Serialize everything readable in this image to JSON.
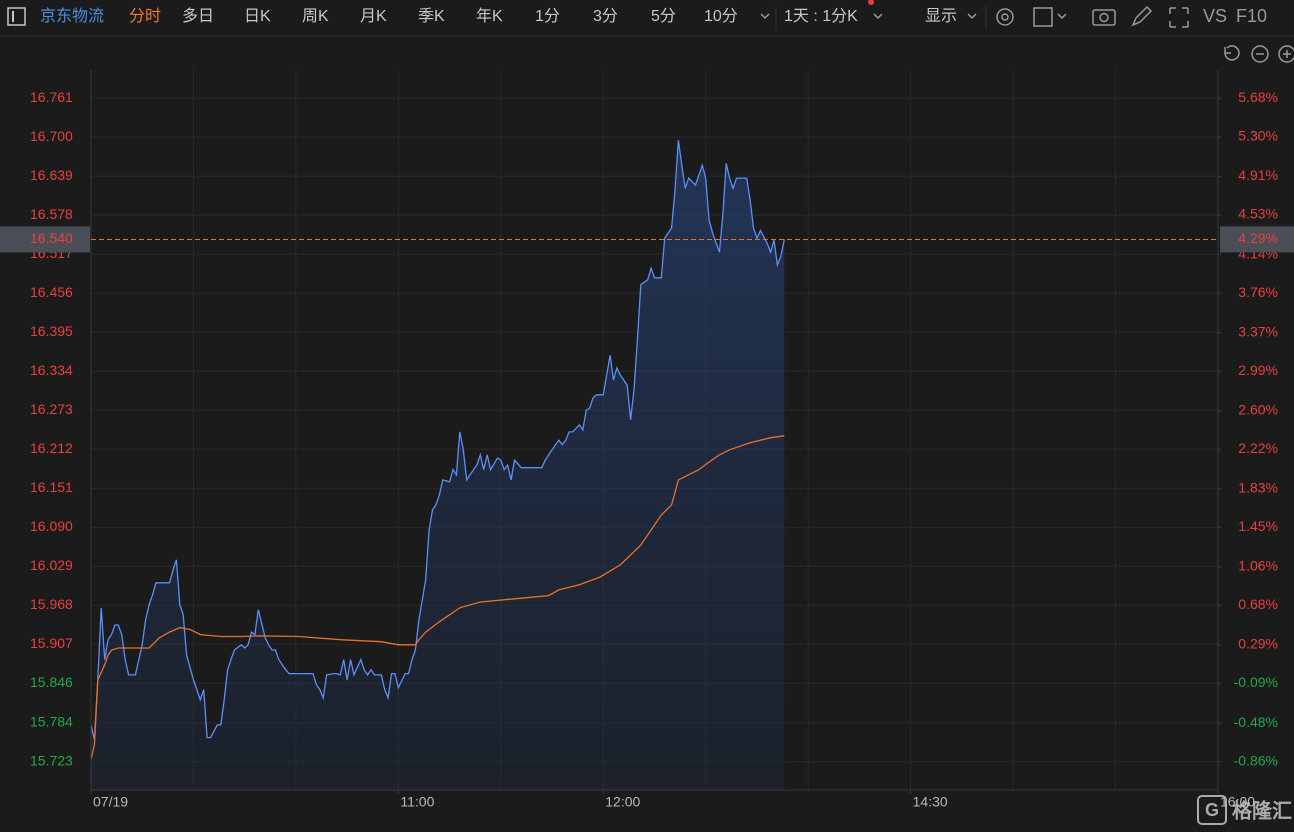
{
  "toolbar": {
    "stock": "京东物流",
    "active": "分时",
    "tabs": [
      "多日",
      "日K",
      "周K",
      "月K",
      "季K",
      "年K",
      "1分",
      "3分",
      "5分",
      "10分"
    ],
    "period": "1天 : 1分K",
    "display": "显示",
    "vs": "VS",
    "f10": "F10"
  },
  "watermark": {
    "logo": "G",
    "text": "格隆汇"
  },
  "chart_data": {
    "type": "line",
    "xlim": [
      0,
      330
    ],
    "xticks": [
      {
        "value": 0,
        "label": "07/19"
      },
      {
        "value": 90,
        "label": "11:00"
      },
      {
        "value": 150,
        "label": "12:00"
      },
      {
        "value": 240,
        "label": "14:30"
      },
      {
        "value": 330,
        "label": "16:00"
      }
    ],
    "xgrid": [
      30,
      60,
      90,
      120,
      150,
      180,
      210,
      240,
      270,
      300
    ],
    "ylim": [
      15.679,
      16.805
    ],
    "yticks": [
      15.723,
      15.784,
      15.846,
      15.907,
      15.968,
      16.029,
      {
        "value": 16.09,
        "label": "16.090"
      },
      16.151,
      16.212,
      16.273,
      16.334,
      16.395,
      16.456,
      16.517,
      16.578,
      16.639,
      {
        "value": 16.7,
        "label": "16.700"
      },
      16.761
    ],
    "y2lim": [
      -1.14,
      5.96
    ],
    "y2ticks": [
      {
        "value": -0.86,
        "label": "-0.86%"
      },
      {
        "value": -0.48,
        "label": "-0.48%"
      },
      {
        "value": -0.09,
        "label": "-0.09%"
      },
      {
        "value": 0.29,
        "label": "0.29%"
      },
      {
        "value": 0.68,
        "label": "0.68%"
      },
      {
        "value": 1.06,
        "label": "1.06%"
      },
      {
        "value": 1.45,
        "label": "1.45%"
      },
      {
        "value": 1.83,
        "label": "1.83%"
      },
      {
        "value": 2.22,
        "label": "2.22%"
      },
      {
        "value": 2.6,
        "label": "2.60%"
      },
      {
        "value": 2.99,
        "label": "2.99%"
      },
      {
        "value": 3.37,
        "label": "3.37%"
      },
      {
        "value": 3.76,
        "label": "3.76%"
      },
      {
        "value": 4.14,
        "label": "4.14%"
      },
      {
        "value": 4.53,
        "label": "4.53%"
      },
      {
        "value": 4.91,
        "label": "4.91%"
      },
      {
        "value": 5.3,
        "label": "5.30%"
      },
      {
        "value": 5.68,
        "label": "5.68%"
      }
    ],
    "up_color": "#e8403c",
    "down_color": "#22a84a",
    "grid": true,
    "last_price": {
      "value": 16.54,
      "label": "16.540"
    },
    "last_pct": {
      "value": 4.29,
      "label": "4.29%"
    },
    "series": [
      {
        "color": "#5b8ff9",
        "area": true,
        "x": [
          0,
          1,
          2,
          3,
          4,
          5,
          6,
          7,
          8,
          9,
          10,
          11,
          13,
          14,
          15,
          16,
          17,
          18,
          19,
          20,
          22,
          23,
          24,
          25,
          26,
          27,
          28,
          30,
          31,
          32,
          33,
          34,
          35,
          37,
          38,
          39,
          40,
          41,
          42,
          44,
          45,
          46,
          47,
          48,
          49,
          51,
          52,
          53,
          54,
          55,
          57,
          58,
          59,
          61,
          64,
          65,
          66,
          67,
          68,
          69,
          71,
          72,
          73,
          74,
          75,
          76,
          77,
          79,
          80,
          81,
          82,
          83,
          85,
          86,
          87,
          88,
          89,
          90,
          92,
          93,
          94,
          95,
          96,
          98,
          99,
          100,
          101,
          102,
          103,
          105,
          106,
          107,
          108,
          109,
          110,
          112,
          113,
          114,
          115,
          116,
          117,
          119,
          120,
          121,
          122,
          123,
          124,
          126,
          129,
          132,
          133,
          134,
          136,
          137,
          138,
          139,
          140,
          141,
          143,
          144,
          145,
          146,
          147,
          148,
          150,
          152,
          153,
          154,
          155,
          157,
          158,
          159,
          160,
          161,
          163,
          164,
          165,
          166,
          167,
          168,
          170,
          171,
          172,
          173,
          174,
          175,
          177,
          178,
          179,
          180,
          181,
          182,
          184,
          185,
          186,
          187,
          188,
          189,
          191,
          192,
          193,
          194,
          195,
          196,
          198,
          199,
          200,
          201,
          202,
          203
        ],
        "values": [
          15.781,
          15.758,
          15.851,
          15.964,
          15.883,
          15.914,
          15.922,
          15.937,
          15.937,
          15.922,
          15.883,
          15.859,
          15.859,
          15.883,
          15.906,
          15.945,
          15.969,
          15.984,
          16.003,
          16.003,
          16.003,
          16.003,
          16.023,
          16.039,
          15.969,
          15.953,
          15.89,
          15.851,
          15.836,
          15.82,
          15.836,
          15.761,
          15.761,
          15.781,
          15.781,
          15.82,
          15.867,
          15.883,
          15.898,
          15.906,
          15.901,
          15.906,
          15.926,
          15.922,
          15.961,
          15.917,
          15.906,
          15.898,
          15.898,
          15.883,
          15.867,
          15.861,
          15.861,
          15.861,
          15.861,
          15.861,
          15.844,
          15.836,
          15.823,
          15.859,
          15.861,
          15.861,
          15.859,
          15.883,
          15.851,
          15.883,
          15.859,
          15.883,
          15.867,
          15.859,
          15.867,
          15.859,
          15.859,
          15.836,
          15.823,
          15.861,
          15.861,
          15.839,
          15.861,
          15.861,
          15.883,
          15.898,
          15.945,
          16.008,
          16.086,
          16.117,
          16.125,
          16.14,
          16.164,
          16.161,
          16.18,
          16.172,
          16.239,
          16.211,
          16.164,
          16.18,
          16.187,
          16.203,
          16.18,
          16.203,
          16.18,
          16.198,
          16.195,
          16.18,
          16.187,
          16.164,
          16.195,
          16.183,
          16.183,
          16.183,
          16.195,
          16.203,
          16.219,
          16.226,
          16.219,
          16.226,
          16.239,
          16.239,
          16.25,
          16.242,
          16.273,
          16.276,
          16.292,
          16.297,
          16.297,
          16.359,
          16.32,
          16.339,
          16.328,
          16.312,
          16.258,
          16.305,
          16.383,
          16.469,
          16.477,
          16.495,
          16.48,
          16.48,
          16.48,
          16.542,
          16.558,
          16.617,
          16.695,
          16.656,
          16.62,
          16.636,
          16.625,
          16.641,
          16.656,
          16.636,
          16.57,
          16.55,
          16.52,
          16.578,
          16.659,
          16.636,
          16.62,
          16.636,
          16.636,
          16.636,
          16.602,
          16.558,
          16.542,
          16.554,
          16.534,
          16.52,
          16.539,
          16.5,
          16.514,
          16.54
        ]
      },
      {
        "color": "#e8702a",
        "area": false,
        "x": [
          0,
          1,
          2,
          4,
          5,
          6,
          8,
          11,
          17,
          20,
          23,
          26,
          29,
          32,
          38,
          44,
          49,
          61,
          73,
          85,
          90,
          95,
          96,
          98,
          102,
          108,
          114,
          126,
          134,
          137,
          143,
          149,
          155,
          161,
          167,
          170,
          172,
          178,
          181,
          184,
          187,
          193,
          199,
          203
        ],
        "values": [
          15.726,
          15.75,
          15.851,
          15.875,
          15.89,
          15.898,
          15.901,
          15.901,
          15.901,
          15.917,
          15.926,
          15.933,
          15.93,
          15.922,
          15.919,
          15.919,
          15.92,
          15.919,
          15.914,
          15.911,
          15.906,
          15.906,
          15.914,
          15.926,
          15.942,
          15.964,
          15.973,
          15.979,
          15.983,
          15.992,
          16.0,
          16.012,
          16.031,
          16.062,
          16.109,
          16.125,
          16.164,
          16.18,
          16.192,
          16.203,
          16.211,
          16.222,
          16.23,
          16.233
        ]
      }
    ]
  }
}
